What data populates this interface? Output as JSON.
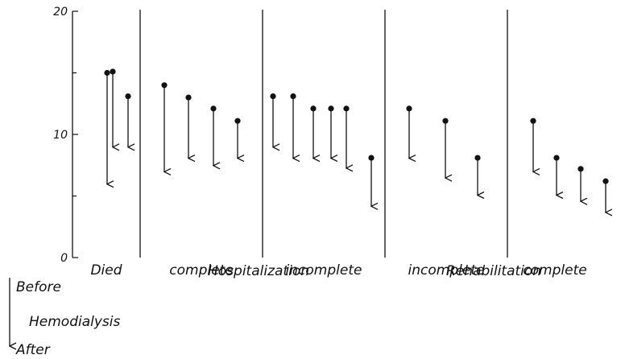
{
  "chart_data": {
    "type": "arrow-range",
    "y_ticks": [
      "0",
      "10",
      "20"
    ],
    "ylim": [
      0,
      20
    ],
    "groups": [
      {
        "label": "Died",
        "arrows": [
          {
            "before": 15.1,
            "after": 8.9
          },
          {
            "before": 15.0,
            "after": 5.9
          },
          {
            "before": 13.1,
            "after": 8.9
          }
        ]
      },
      {
        "label": "complete",
        "arrows": [
          {
            "before": 14.0,
            "after": 6.9
          },
          {
            "before": 13.0,
            "after": 8.0
          },
          {
            "before": 12.1,
            "after": 7.4
          },
          {
            "before": 11.1,
            "after": 8.0
          }
        ]
      },
      {
        "label": "incomplete",
        "arrows": [
          {
            "before": 13.1,
            "after": 8.9
          },
          {
            "before": 13.1,
            "after": 8.0
          },
          {
            "before": 12.1,
            "after": 8.0
          },
          {
            "before": 12.1,
            "after": 8.0
          },
          {
            "before": 12.1,
            "after": 7.2
          },
          {
            "before": 8.1,
            "after": 4.1
          }
        ]
      },
      {
        "label": "incomplete",
        "arrows": [
          {
            "before": 12.1,
            "after": 8.0
          },
          {
            "before": 11.1,
            "after": 6.4
          },
          {
            "before": 8.1,
            "after": 5.0
          }
        ]
      },
      {
        "label": "complete",
        "arrows": [
          {
            "before": 11.1,
            "after": 6.9
          },
          {
            "before": 8.1,
            "after": 5.0
          },
          {
            "before": 7.2,
            "after": 4.5
          },
          {
            "before": 6.2,
            "after": 3.6
          }
        ]
      }
    ],
    "category_labels": [
      "Hospitalization",
      "Rehabilitation"
    ],
    "legend": {
      "top": "Before",
      "middle": "Hemodialysis",
      "bottom": "After"
    }
  }
}
